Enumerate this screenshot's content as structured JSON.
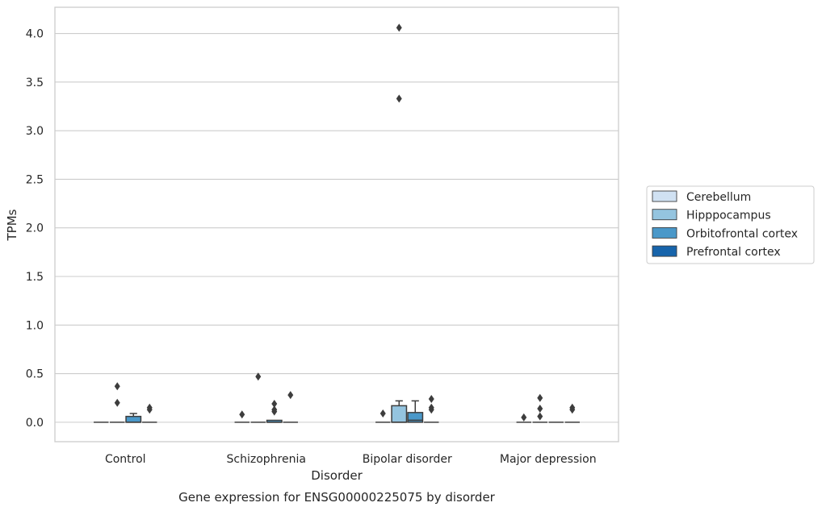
{
  "chart_data": {
    "type": "box",
    "caption": "Gene expression for ENSG00000225075 by disorder",
    "xlabel": "Disorder",
    "ylabel": "TPMs",
    "ylim": [
      -0.2,
      4.27
    ],
    "yticks": [
      "0.0",
      "0.5",
      "1.0",
      "1.5",
      "2.0",
      "2.5",
      "3.0",
      "3.5",
      "4.0"
    ],
    "grid": "horizontal",
    "legend_placement": "right",
    "categories": [
      "Control",
      "Schizophrenia",
      "Bipolar disorder",
      "Major depression"
    ],
    "series": [
      {
        "name": "Cerebellum",
        "color": "#d0e1f2",
        "boxes": [
          {
            "q1": 0,
            "median": 0,
            "q3": 0,
            "whislo": 0,
            "whishi": 0,
            "fliers": []
          },
          {
            "q1": 0,
            "median": 0,
            "q3": 0,
            "whislo": 0,
            "whishi": 0,
            "fliers": [
              0.08
            ]
          },
          {
            "q1": 0,
            "median": 0,
            "q3": 0,
            "whislo": 0,
            "whishi": 0,
            "fliers": [
              0.09
            ]
          },
          {
            "q1": 0,
            "median": 0,
            "q3": 0,
            "whislo": 0,
            "whishi": 0,
            "fliers": [
              0.05
            ]
          }
        ]
      },
      {
        "name": "Hipppocampus",
        "color": "#94c4df",
        "boxes": [
          {
            "q1": 0,
            "median": 0,
            "q3": 0,
            "whislo": 0,
            "whishi": 0,
            "fliers": [
              0.37,
              0.2
            ]
          },
          {
            "q1": 0,
            "median": 0,
            "q3": 0,
            "whislo": 0,
            "whishi": 0,
            "fliers": [
              0.47
            ]
          },
          {
            "q1": 0,
            "median": 0,
            "q3": 0.17,
            "whislo": 0,
            "whishi": 0.22,
            "fliers": [
              4.06,
              3.33
            ]
          },
          {
            "q1": 0,
            "median": 0,
            "q3": 0,
            "whislo": 0,
            "whishi": 0,
            "fliers": [
              0.25,
              0.14,
              0.06
            ]
          }
        ]
      },
      {
        "name": "Orbitofrontal cortex",
        "color": "#4a98c9",
        "boxes": [
          {
            "q1": 0,
            "median": 0,
            "q3": 0.06,
            "whislo": 0,
            "whishi": 0.09,
            "fliers": []
          },
          {
            "q1": 0,
            "median": 0,
            "q3": 0.02,
            "whislo": 0,
            "whishi": 0.02,
            "fliers": [
              0.19,
              0.13,
              0.11
            ]
          },
          {
            "q1": 0,
            "median": 0.02,
            "q3": 0.1,
            "whislo": 0,
            "whishi": 0.22,
            "fliers": []
          },
          {
            "q1": 0,
            "median": 0,
            "q3": 0,
            "whislo": 0,
            "whishi": 0,
            "fliers": []
          }
        ]
      },
      {
        "name": "Prefrontal cortex",
        "color": "#1764ab",
        "boxes": [
          {
            "q1": 0,
            "median": 0,
            "q3": 0,
            "whislo": 0,
            "whishi": 0,
            "fliers": [
              0.15,
              0.13
            ]
          },
          {
            "q1": 0,
            "median": 0,
            "q3": 0,
            "whislo": 0,
            "whishi": 0,
            "fliers": [
              0.28
            ]
          },
          {
            "q1": 0,
            "median": 0,
            "q3": 0,
            "whislo": 0,
            "whishi": 0,
            "fliers": [
              0.24,
              0.15,
              0.13
            ]
          },
          {
            "q1": 0,
            "median": 0,
            "q3": 0,
            "whislo": 0,
            "whishi": 0,
            "fliers": [
              0.15,
              0.13
            ]
          }
        ]
      }
    ]
  }
}
